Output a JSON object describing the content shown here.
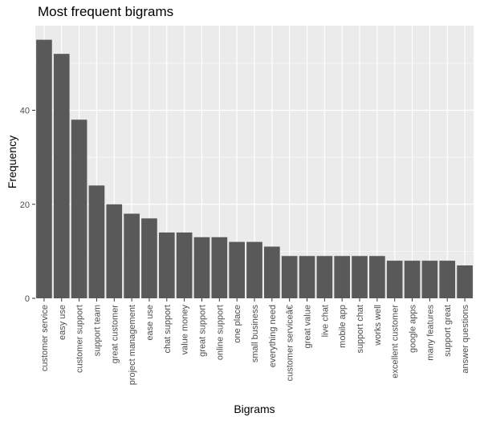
{
  "chart_data": {
    "type": "bar",
    "title": "Most frequent bigrams",
    "xlabel": "Bigrams",
    "ylabel": "Frequency",
    "ylim": [
      0,
      58
    ],
    "yticks": [
      0,
      20,
      40
    ],
    "grid": true,
    "bar_color": "#595959",
    "panel_color": "#ebebeb",
    "categories": [
      "customer service",
      "easy use",
      "customer support",
      "support team",
      "great customer",
      "project management",
      "ease use",
      "chat support",
      "value money",
      "great support",
      "online support",
      "one place",
      "small business",
      "everything need",
      "customer serviceâ€",
      "great value",
      "live chat",
      "mobile app",
      "support chat",
      "works well",
      "excellent customer",
      "google apps",
      "many features",
      "support great",
      "answer questions"
    ],
    "values": [
      55,
      52,
      38,
      24,
      20,
      18,
      17,
      14,
      14,
      13,
      13,
      12,
      12,
      11,
      9,
      9,
      9,
      9,
      9,
      9,
      8,
      8,
      8,
      8,
      7
    ]
  }
}
